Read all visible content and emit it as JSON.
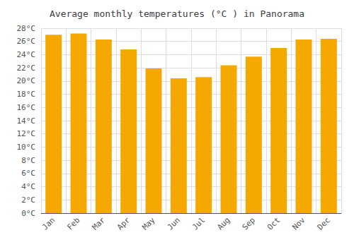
{
  "chart_data": {
    "type": "bar",
    "title": "Average monthly temperatures (°C ) in Panorama",
    "categories": [
      "Jan",
      "Feb",
      "Mar",
      "Apr",
      "May",
      "Jun",
      "Jul",
      "Aug",
      "Sep",
      "Oct",
      "Nov",
      "Dec"
    ],
    "values": [
      27.0,
      27.2,
      26.3,
      24.8,
      21.9,
      20.4,
      20.6,
      22.4,
      23.7,
      25.0,
      26.3,
      26.4
    ],
    "color": "#F5A800",
    "ylim": [
      0,
      28
    ],
    "yticks": [
      {
        "value": 0,
        "label": "0°C"
      },
      {
        "value": 2,
        "label": "2°C"
      },
      {
        "value": 4,
        "label": "4°C"
      },
      {
        "value": 6,
        "label": "6°C"
      },
      {
        "value": 8,
        "label": "8°C"
      },
      {
        "value": 10,
        "label": "10°C"
      },
      {
        "value": 12,
        "label": "12°C"
      },
      {
        "value": 14,
        "label": "14°C"
      },
      {
        "value": 16,
        "label": "16°C"
      },
      {
        "value": 18,
        "label": "18°C"
      },
      {
        "value": 20,
        "label": "20°C"
      },
      {
        "value": 22,
        "label": "22°C"
      },
      {
        "value": 24,
        "label": "24°C"
      },
      {
        "value": 26,
        "label": "26°C"
      },
      {
        "value": 28,
        "label": "28°C"
      }
    ],
    "grid": true
  }
}
